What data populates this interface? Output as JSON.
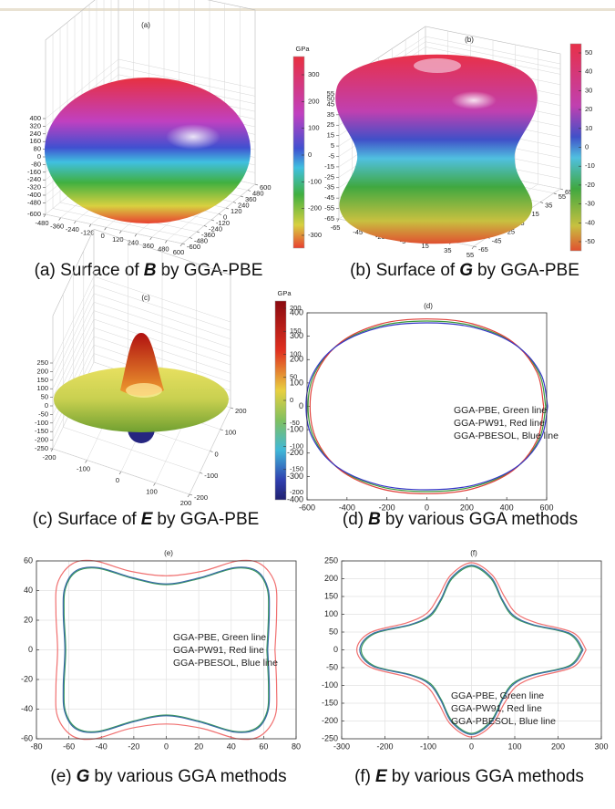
{
  "chart_data": [
    {
      "type": "surface",
      "title": "(a)",
      "caption": {
        "prefix": "(a) Surface of",
        "symbol": "B",
        "suffix": "by GGA-PBE"
      },
      "xticks": [
        -480,
        -360,
        -240,
        -120,
        0,
        120,
        240,
        360,
        480,
        600
      ],
      "yticks": [
        -600,
        -480,
        -360,
        -240,
        -120,
        0,
        120,
        240,
        360,
        480,
        600
      ],
      "zticks": [
        400,
        320,
        240,
        160,
        80,
        0,
        -80,
        -160,
        -240,
        -320,
        -400,
        -480,
        -600
      ],
      "colorbar": {
        "label": "GPa",
        "ticks": [
          300,
          200,
          100,
          0,
          -100,
          -200,
          -300
        ]
      }
    },
    {
      "type": "surface",
      "title": "(b)",
      "caption": {
        "prefix": "(b) Surface of",
        "symbol": "G",
        "suffix": "by GGA-PBE"
      },
      "xticks": [
        -65,
        -45,
        -25,
        -5,
        15,
        35,
        55
      ],
      "yticks": [
        -65,
        -45,
        -25,
        -5,
        15,
        35,
        55,
        65
      ],
      "zticks": [
        55,
        50,
        45,
        35,
        25,
        15,
        5,
        -5,
        -15,
        -25,
        -35,
        -45,
        -55,
        -65
      ],
      "colorbar": {
        "ticks": [
          50,
          40,
          30,
          20,
          10,
          0,
          -10,
          -20,
          -30,
          -40,
          -50
        ]
      }
    },
    {
      "type": "surface",
      "title": "(c)",
      "caption": {
        "prefix": "(c) Surface of",
        "symbol": "E",
        "suffix": "by GGA-PBE"
      },
      "xticks": [
        -200,
        -100,
        0,
        100,
        200
      ],
      "yticks": [
        -200,
        -100,
        0,
        100,
        200
      ],
      "zticks": [
        250,
        200,
        150,
        100,
        50,
        0,
        -50,
        -100,
        -150,
        -200,
        -250
      ],
      "colorbar": {
        "label": "GPa",
        "ticks": [
          200,
          150,
          100,
          50,
          0,
          -50,
          -100,
          -150,
          -200
        ]
      }
    },
    {
      "type": "line",
      "title": "(d)",
      "caption": {
        "prefix": "(d)",
        "symbol": "B",
        "suffix": "by various GGA methods"
      },
      "xlim": [
        -600,
        600
      ],
      "ylim": [
        -400,
        400
      ],
      "xticks": [
        -600,
        -400,
        -200,
        0,
        200,
        400,
        600
      ],
      "yticks": [
        -400,
        -300,
        -200,
        -100,
        0,
        100,
        200,
        300,
        400
      ],
      "grid": false,
      "annotation": [
        "GGA-PBE, Green line",
        "GGA-PW91, Red line",
        "GGA-PBESOL, Blue line"
      ],
      "series": [
        {
          "color": "#3a9a3a",
          "x": [
            595,
            561,
            438,
            233,
            0,
            -233,
            -438,
            -561,
            -595,
            -561,
            -438,
            -233,
            0,
            233,
            438,
            561,
            595
          ],
          "y": [
            0,
            143,
            268,
            344,
            365,
            344,
            268,
            143,
            0,
            -143,
            -268,
            -344,
            -365,
            -344,
            -268,
            -143,
            0
          ]
        },
        {
          "color": "#e0403a",
          "x": [
            585,
            551,
            430,
            228,
            0,
            -228,
            -430,
            -551,
            -585,
            -551,
            -430,
            -228,
            0,
            228,
            430,
            551,
            585
          ],
          "y": [
            0,
            146,
            275,
            353,
            374,
            353,
            275,
            146,
            0,
            -146,
            -275,
            -353,
            -374,
            -353,
            -275,
            -146,
            0
          ]
        },
        {
          "color": "#3636c8",
          "x": [
            605,
            570,
            445,
            236,
            0,
            -236,
            -445,
            -570,
            -605,
            -570,
            -445,
            -236,
            0,
            236,
            445,
            570,
            605
          ],
          "y": [
            0,
            140,
            262,
            337,
            357,
            337,
            262,
            140,
            0,
            -140,
            -262,
            -337,
            -357,
            -337,
            -262,
            -140,
            0
          ]
        }
      ]
    },
    {
      "type": "line",
      "title": "(e)",
      "caption": {
        "prefix": "(e)",
        "symbol": "G",
        "suffix": "by various GGA methods"
      },
      "xlim": [
        -80,
        80
      ],
      "ylim": [
        -60,
        60
      ],
      "xticks": [
        -80,
        -60,
        -40,
        -20,
        0,
        20,
        40,
        60,
        80
      ],
      "yticks": [
        -60,
        -40,
        -20,
        0,
        20,
        40,
        60
      ],
      "grid": true,
      "annotation": [
        "GGA-PBE, Green line",
        "GGA-PW91, Red line",
        "GGA-PBESOL, Blue line"
      ],
      "series": [
        {
          "color": "#f07070",
          "x": [
            67,
            68,
            67,
            58,
            44,
            22,
            0,
            -22,
            -44,
            -58,
            -67,
            -68,
            -67,
            -68,
            -67,
            -58,
            -44,
            -22,
            0,
            22,
            44,
            58,
            67,
            68,
            67
          ],
          "y": [
            0,
            25,
            45,
            58,
            60,
            53,
            50,
            53,
            60,
            58,
            45,
            25,
            0,
            -25,
            -45,
            -58,
            -60,
            -53,
            -50,
            -53,
            -60,
            -58,
            -45,
            -25,
            0
          ]
        },
        {
          "color": "#3a9a5a",
          "x": [
            62,
            63,
            62,
            55,
            42,
            20,
            0,
            -20,
            -42,
            -55,
            -62,
            -63,
            -62,
            -63,
            -62,
            -55,
            -42,
            -20,
            0,
            20,
            42,
            55,
            62,
            63,
            62
          ],
          "y": [
            0,
            25,
            42,
            53,
            55,
            48,
            44,
            48,
            55,
            53,
            42,
            25,
            0,
            -25,
            -42,
            -53,
            -55,
            -48,
            -44,
            -48,
            -55,
            -53,
            -42,
            -25,
            0
          ]
        },
        {
          "color": "#3a6aa8",
          "x": [
            62.5,
            63.5,
            62.5,
            55.5,
            42,
            20,
            0,
            -20,
            -42,
            -55.5,
            -62.5,
            -63.5,
            -62.5,
            -63.5,
            -62.5,
            -55.5,
            -42,
            -20,
            0,
            20,
            42,
            55.5,
            62.5,
            63.5,
            62.5
          ],
          "y": [
            0,
            25,
            42,
            53.5,
            55.5,
            48.5,
            44.5,
            48.5,
            55.5,
            53.5,
            42,
            25,
            0,
            -25,
            -42,
            -53.5,
            -55.5,
            -48.5,
            -44.5,
            -48.5,
            -55.5,
            -53.5,
            -42,
            -25,
            0
          ]
        }
      ]
    },
    {
      "type": "line",
      "title": "(f)",
      "caption": {
        "prefix": "(f)",
        "symbol": "E",
        "suffix": "by various GGA methods"
      },
      "xlim": [
        -300,
        300
      ],
      "ylim": [
        -250,
        250
      ],
      "xticks": [
        -300,
        -200,
        -100,
        0,
        100,
        200,
        300
      ],
      "yticks": [
        -250,
        -200,
        -150,
        -100,
        -50,
        0,
        50,
        100,
        150,
        200,
        250
      ],
      "grid": true,
      "annotation": [
        "GGA-PBE, Green line",
        "GGA-PW91, Red line",
        "GGA-PBESOL, Blue line"
      ],
      "series": [
        {
          "color": "#f07070",
          "x": [
            265,
            235,
            150,
            103,
            76,
            48,
            0,
            -48,
            -76,
            -103,
            -150,
            -235,
            -265,
            -235,
            -150,
            -103,
            -76,
            -48,
            0,
            48,
            76,
            103,
            150,
            235,
            265
          ],
          "y": [
            0,
            48,
            76,
            103,
            150,
            210,
            245,
            210,
            150,
            103,
            76,
            48,
            0,
            -48,
            -76,
            -103,
            -150,
            -210,
            -245,
            -210,
            -150,
            -103,
            -76,
            -48,
            0
          ]
        },
        {
          "color": "#3a9a5a",
          "x": [
            255,
            225,
            140,
            95,
            70,
            45,
            0,
            -45,
            -70,
            -95,
            -140,
            -225,
            -255,
            -225,
            -140,
            -95,
            -70,
            -45,
            0,
            45,
            70,
            95,
            140,
            225,
            255
          ],
          "y": [
            0,
            45,
            70,
            95,
            140,
            200,
            235,
            200,
            140,
            95,
            70,
            45,
            0,
            -45,
            -70,
            -95,
            -140,
            -200,
            -235,
            -200,
            -140,
            -95,
            -70,
            -45,
            0
          ]
        },
        {
          "color": "#3a6aa8",
          "x": [
            258,
            228,
            142,
            97,
            71,
            46,
            0,
            -46,
            -71,
            -97,
            -142,
            -228,
            -258,
            -228,
            -142,
            -97,
            -71,
            -46,
            0,
            46,
            71,
            97,
            142,
            228,
            258
          ],
          "y": [
            0,
            46,
            71,
            97,
            142,
            203,
            238,
            203,
            142,
            97,
            71,
            46,
            0,
            -46,
            -71,
            -97,
            -142,
            -203,
            -238,
            -203,
            -142,
            -97,
            -71,
            -46,
            0
          ]
        }
      ]
    }
  ]
}
